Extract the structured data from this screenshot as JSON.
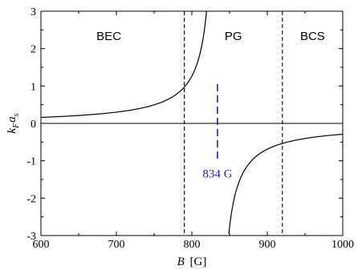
{
  "chart_data": {
    "type": "line",
    "xlabel_var": "B",
    "xlabel_unit": "[G]",
    "ylabel_var": "k",
    "ylabel_sub1": "F",
    "ylabel_mid": "a",
    "ylabel_sub2": "s",
    "xlim": [
      600,
      1000
    ],
    "ylim": [
      -3,
      3
    ],
    "x_ticks": [
      600,
      700,
      800,
      900,
      1000
    ],
    "y_ticks": [
      -3,
      -2,
      -1,
      0,
      1,
      2,
      3
    ],
    "x_tick_labels": [
      "600",
      "700",
      "800",
      "900",
      "1000"
    ],
    "y_tick_labels": [
      "-3",
      "-2",
      "-1",
      "0",
      "1",
      "2",
      "3"
    ],
    "resonance_B": 834,
    "regions": [
      {
        "label": "BEC",
        "x": 690
      },
      {
        "label": "PG",
        "x": 855
      },
      {
        "label": "BCS",
        "x": 960
      }
    ],
    "boundaries": [
      790,
      920
    ],
    "annotation": {
      "label": "834 G",
      "x": 834,
      "y_range": [
        -0.95,
        1.05
      ],
      "color": "#1f1fd6"
    },
    "zero_line": 0
  }
}
